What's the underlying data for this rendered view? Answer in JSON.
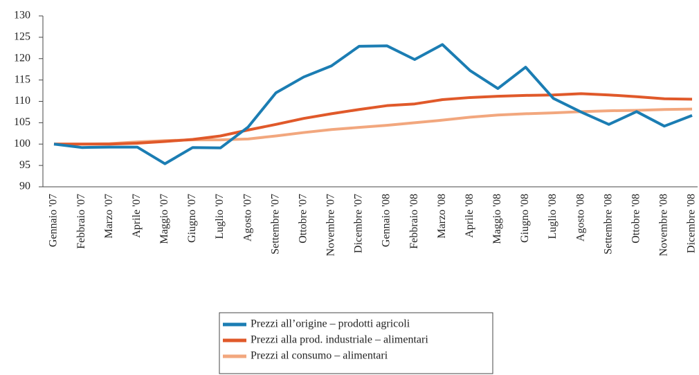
{
  "chart_data": {
    "type": "line",
    "categories": [
      "Gennaio '07",
      "Febbraio '07",
      "Marzo '07",
      "Aprile '07",
      "Maggio '07",
      "Giugno '07",
      "Luglio '07",
      "Agosto '07",
      "Settembre '07",
      "Ottobre '07",
      "Novembre '07",
      "Dicembre '07",
      "Gennaio '08",
      "Febbraio '08",
      "Marzo '08",
      "Aprile '08",
      "Maggio '08",
      "Giugno '08",
      "Luglio '08",
      "Agosto '08",
      "Settembre '08",
      "Ottobre '08",
      "Novembre '08",
      "Dicembre '08"
    ],
    "series": [
      {
        "name": "Prezzi all’origine – prodotti agricoli",
        "color": "#1b7db3",
        "values": [
          100,
          99.2,
          99.3,
          99.3,
          95.4,
          99.2,
          99.1,
          104,
          112,
          115.7,
          118.3,
          122.9,
          123,
          119.8,
          123.3,
          117.2,
          113,
          118,
          110.7,
          107.5,
          104.6,
          107.6,
          104.2,
          106.7
        ]
      },
      {
        "name": "Prezzi alla prod. industriale – alimentari",
        "color": "#e0592a",
        "values": [
          100,
          100,
          100,
          100.2,
          100.6,
          101.1,
          101.9,
          103.3,
          104.6,
          106,
          107.1,
          108.1,
          109,
          109.4,
          110.4,
          110.9,
          111.2,
          111.4,
          111.5,
          111.8,
          111.5,
          111.1,
          110.6,
          110.5
        ]
      },
      {
        "name": "Prezzi al consumo – alimentari",
        "color": "#f2a77e",
        "values": [
          100,
          100,
          100.1,
          100.5,
          100.8,
          101,
          101,
          101.2,
          101.9,
          102.7,
          103.4,
          103.9,
          104.4,
          105,
          105.6,
          106.3,
          106.8,
          107.1,
          107.3,
          107.6,
          107.8,
          107.9,
          108.1,
          108.2
        ]
      }
    ],
    "ylim": [
      90,
      130
    ],
    "yticks": [
      90,
      95,
      100,
      105,
      110,
      115,
      120,
      125,
      130
    ],
    "grid": false
  }
}
